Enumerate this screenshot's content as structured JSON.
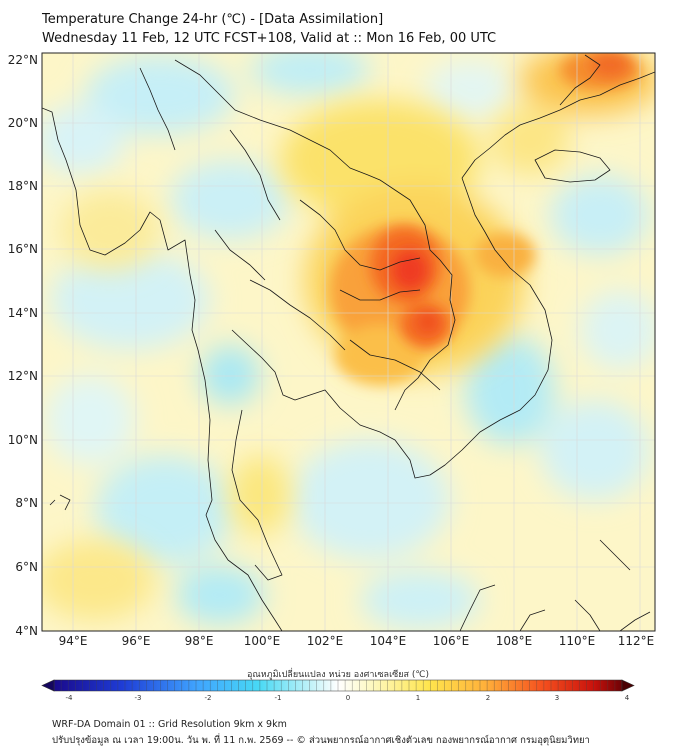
{
  "header": {
    "title_line1": "Temperature Change 24-hr (℃) - [Data Assimilation]",
    "title_line2": "Wednesday 11 Feb, 12 UTC FCST+108, Valid at :: Mon 16 Feb, 00 UTC"
  },
  "map": {
    "lat_labels": [
      "22°N",
      "20°N",
      "18°N",
      "16°N",
      "14°N",
      "12°N",
      "10°N",
      "8°N",
      "6°N",
      "4°N"
    ],
    "lon_labels": [
      "94°E",
      "96°E",
      "98°E",
      "100°E",
      "102°E",
      "104°E",
      "106°E",
      "108°E",
      "110°E",
      "112°E"
    ],
    "colors": {
      "background_pale_yellow": "#fdf6c8",
      "cool_cyan": "#aee9f5",
      "warm_orange": "#f9a13a",
      "hot_red": "#ef3b21",
      "border_line": "#1a1a1a"
    }
  },
  "colorbar": {
    "title": "อุณหภูมิเปลี่ยนแปลง หน่วย องศาเซลเซียส (℃)",
    "tick_labels": [
      "-4",
      "-3",
      "-2",
      "-1",
      "0",
      "1",
      "2",
      "3",
      "4"
    ],
    "range": [
      -4,
      4
    ],
    "stops": [
      "#1a0a8c",
      "#1e3cd6",
      "#3fa3ff",
      "#48d9f5",
      "#bff2f8",
      "#ffffff",
      "#fdf8c0",
      "#ffe54d",
      "#ffb03a",
      "#f5501e",
      "#c9120c",
      "#6e0205"
    ]
  },
  "footer": {
    "line1": "WRF-DA Domain 01 :: Grid Resolution 9km x 9km",
    "line2": "ปรับปรุงข้อมูล ณ เวลา 19:00น. วัน พ. ที่ 11 ก.พ. 2569 -- © ส่วนพยากรณ์อากาศเชิงตัวเลข กองพยากรณ์อากาศ กรมอุตุนิยมวิทยา"
  }
}
